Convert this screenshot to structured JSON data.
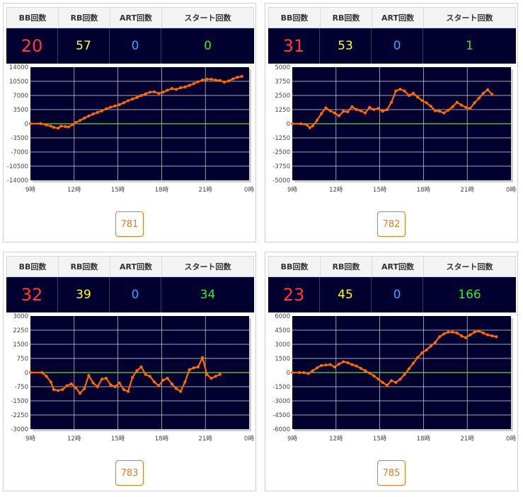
{
  "headers": {
    "bb": "BB回数",
    "rb": "RB回数",
    "art": "ART回数",
    "start": "スタート回数"
  },
  "colors": {
    "line": "#ff6a00",
    "zero_line": "#66dd33",
    "plot_bg": "#01002e",
    "bb": "#ff3a3a",
    "rb": "#ffff33",
    "art": "#3aa6ff",
    "start": "#37e637",
    "button": "#e07a1e"
  },
  "cards": [
    {
      "machine": "781",
      "bb": "20",
      "rb": "57",
      "art": "0",
      "start": "0"
    },
    {
      "machine": "782",
      "bb": "31",
      "rb": "53",
      "art": "0",
      "start": "1"
    },
    {
      "machine": "783",
      "bb": "32",
      "rb": "39",
      "art": "0",
      "start": "34"
    },
    {
      "machine": "785",
      "bb": "23",
      "rb": "45",
      "art": "0",
      "start": "166"
    }
  ],
  "chart_data": [
    {
      "type": "line",
      "machine": "781",
      "ylim": [
        -14000,
        14000
      ],
      "yticks": [
        "14000",
        "10500",
        "7000",
        "3500",
        "0",
        "-3500",
        "-7000",
        "-10500",
        "-14000"
      ],
      "xticks": [
        "9時",
        "12時",
        "15時",
        "18時",
        "21時",
        "0時"
      ],
      "x": [
        9.0,
        9.7,
        10.1,
        10.4,
        10.6,
        10.9,
        11.1,
        11.4,
        11.6,
        11.9,
        12.1,
        12.4,
        12.7,
        13.0,
        13.3,
        13.6,
        13.9,
        14.2,
        14.5,
        14.8,
        15.1,
        15.4,
        15.7,
        16.0,
        16.3,
        16.6,
        16.9,
        17.2,
        17.5,
        17.8,
        18.1,
        18.4,
        18.7,
        19.0,
        19.3,
        19.6,
        19.9,
        20.2,
        20.5,
        20.8,
        21.1,
        21.4,
        21.7,
        22.0,
        22.3,
        22.6,
        22.9,
        23.2,
        23.5
      ],
      "y": [
        0,
        50,
        -300,
        -600,
        -900,
        -1100,
        -600,
        -700,
        -800,
        -200,
        300,
        800,
        1400,
        1900,
        2400,
        2800,
        3200,
        3700,
        4100,
        4400,
        4700,
        5200,
        5700,
        6100,
        6500,
        7000,
        7400,
        7800,
        7900,
        7500,
        7800,
        8300,
        8700,
        8500,
        8900,
        9100,
        9500,
        9900,
        10400,
        10800,
        11000,
        11000,
        10800,
        10700,
        10300,
        10600,
        11100,
        11500,
        11700
      ]
    },
    {
      "type": "line",
      "machine": "782",
      "ylim": [
        -5000,
        5000
      ],
      "yticks": [
        "5000",
        "3750",
        "2500",
        "1250",
        "0",
        "-1250",
        "-2500",
        "-3750",
        "-5000"
      ],
      "xticks": [
        "9時",
        "12時",
        "15時",
        "18時",
        "21時",
        "0時"
      ],
      "x": [
        9.0,
        9.6,
        10.0,
        10.2,
        10.4,
        10.7,
        11.0,
        11.3,
        11.6,
        11.9,
        12.2,
        12.5,
        12.8,
        13.1,
        13.4,
        13.7,
        14.0,
        14.3,
        14.6,
        14.9,
        15.2,
        15.5,
        15.8,
        16.1,
        16.4,
        16.7,
        17.0,
        17.3,
        17.6,
        17.9,
        18.2,
        18.5,
        18.8,
        19.1,
        19.4,
        19.7,
        20.0,
        20.3,
        20.6,
        20.9,
        21.2,
        21.5,
        21.8,
        22.1,
        22.4,
        22.7
      ],
      "y": [
        0,
        0,
        -100,
        -350,
        -200,
        300,
        900,
        1400,
        1150,
        950,
        700,
        1100,
        1050,
        1500,
        1250,
        1150,
        950,
        1450,
        1250,
        1350,
        1100,
        1250,
        1900,
        2900,
        3050,
        2900,
        2500,
        2700,
        2350,
        2050,
        1850,
        1550,
        1150,
        1100,
        950,
        1200,
        1500,
        1900,
        1650,
        1450,
        1350,
        1850,
        2250,
        2700,
        3000,
        2600
      ]
    },
    {
      "type": "line",
      "machine": "783",
      "ylim": [
        -3000,
        3000
      ],
      "yticks": [
        "3000",
        "2250",
        "1500",
        "750",
        "0",
        "-750",
        "-1500",
        "-2250",
        "-3000"
      ],
      "xticks": [
        "9時",
        "12時",
        "15時",
        "18時",
        "21時",
        "0時"
      ],
      "x": [
        9.0,
        9.8,
        10.1,
        10.4,
        10.6,
        10.9,
        11.2,
        11.5,
        11.8,
        12.1,
        12.4,
        12.7,
        13.0,
        13.3,
        13.6,
        13.9,
        14.2,
        14.5,
        14.8,
        15.1,
        15.4,
        15.7,
        16.0,
        16.3,
        16.6,
        16.9,
        17.2,
        17.5,
        17.8,
        18.1,
        18.4,
        18.7,
        19.0,
        19.3,
        19.6,
        19.9,
        20.2,
        20.5,
        20.8,
        21.1,
        21.4,
        21.7,
        22.0
      ],
      "y": [
        0,
        0,
        -200,
        -500,
        -900,
        -950,
        -900,
        -700,
        -600,
        -800,
        -1100,
        -850,
        -150,
        -550,
        -750,
        -350,
        -300,
        -650,
        -750,
        -550,
        -900,
        -1000,
        -250,
        100,
        300,
        -100,
        -200,
        -500,
        -700,
        -400,
        -300,
        -600,
        -850,
        -1000,
        -500,
        150,
        250,
        300,
        800,
        -100,
        -300,
        -200,
        -100
      ]
    },
    {
      "type": "line",
      "machine": "785",
      "ylim": [
        -6000,
        6000
      ],
      "yticks": [
        "6000",
        "4500",
        "3000",
        "1500",
        "0",
        "-1500",
        "-3000",
        "-4500",
        "-6000"
      ],
      "xticks": [
        "9時",
        "12時",
        "15時",
        "18時",
        "21時",
        "0時"
      ],
      "x": [
        9.0,
        9.5,
        9.8,
        10.1,
        10.4,
        10.7,
        11.0,
        11.3,
        11.6,
        11.9,
        12.2,
        12.5,
        12.8,
        13.1,
        13.4,
        13.7,
        14.0,
        14.3,
        14.6,
        14.9,
        15.2,
        15.5,
        15.8,
        16.1,
        16.4,
        16.7,
        17.0,
        17.3,
        17.6,
        17.9,
        18.2,
        18.5,
        18.8,
        19.1,
        19.4,
        19.7,
        20.0,
        20.3,
        20.6,
        20.9,
        21.2,
        21.5,
        21.8,
        22.1,
        22.4,
        22.7,
        23.0
      ],
      "y": [
        0,
        0,
        0,
        -100,
        200,
        500,
        750,
        800,
        850,
        600,
        900,
        1150,
        1050,
        850,
        700,
        450,
        200,
        -50,
        -350,
        -700,
        -1050,
        -1350,
        -850,
        -1050,
        -700,
        -200,
        400,
        1000,
        1600,
        2100,
        2400,
        2800,
        3200,
        3800,
        4100,
        4300,
        4300,
        4200,
        3900,
        3700,
        4000,
        4300,
        4400,
        4200,
        4000,
        3900,
        3800
      ]
    }
  ]
}
